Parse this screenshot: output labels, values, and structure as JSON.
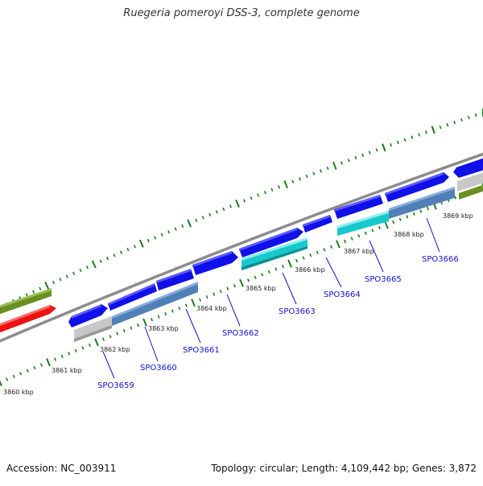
{
  "title": "Ruegeria pomeroyi DSS-3, complete genome",
  "footer": {
    "accession": "Accession: NC_003911",
    "summary": "Topology: circular; Length: 4,109,442 bp; Genes: 3,872"
  },
  "colors": {
    "backbone": "#8c8c8c",
    "ticks": "#1a7a1a",
    "gene_blue": "#1010e8",
    "gene_steel": "#4f80b6",
    "gene_cyan": "#18c8cc",
    "gene_gray": "#c8c8c8",
    "gene_olive": "#6b8e23",
    "gene_red": "#ee1111",
    "gene_label": "#1010cc"
  },
  "kbp_labels": [
    "3860 kbp",
    "3861 kbp",
    "3862 kbp",
    "3863 kbp",
    "3864 kbp",
    "3865 kbp",
    "3866 kbp",
    "3867 kbp",
    "3868 kbp",
    "3869 kbp"
  ],
  "gene_labels": [
    "SPO3659",
    "SPO3660",
    "SPO3661",
    "SPO3662",
    "SPO3663",
    "SPO3664",
    "SPO3665",
    "SPO3666"
  ]
}
